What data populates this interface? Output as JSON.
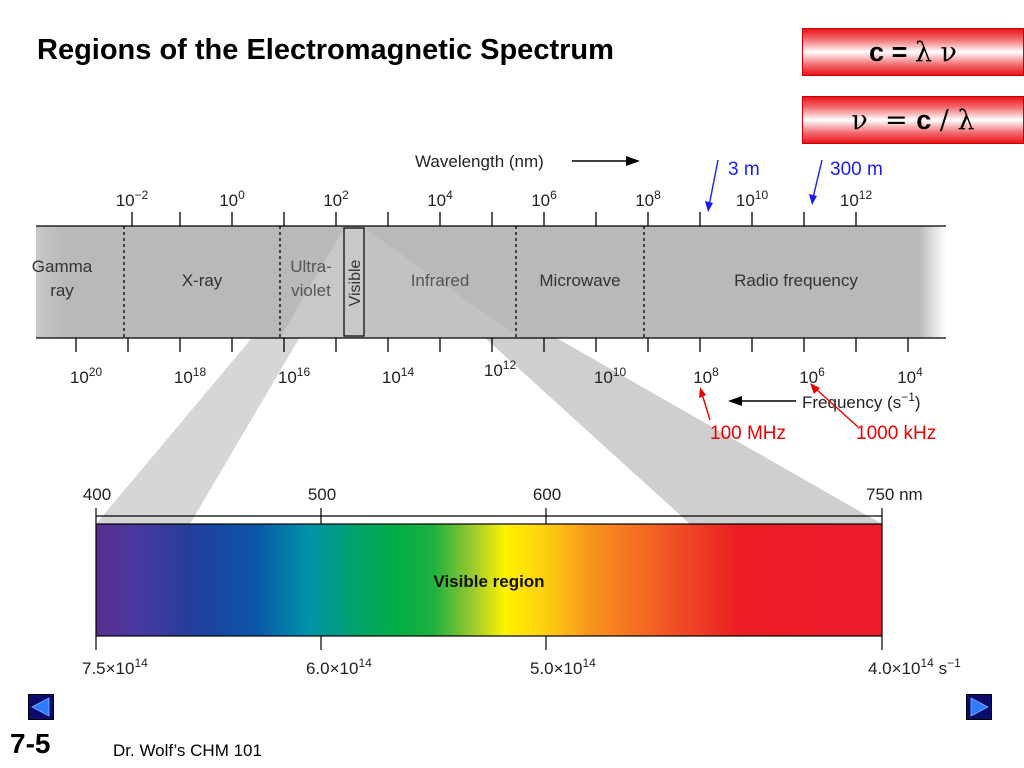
{
  "slide": {
    "title": "Regions of the Electromagnetic Spectrum",
    "number": "7-5",
    "footer": "Dr. Wolf’s CHM 101"
  },
  "equations": {
    "eq1": {
      "lhs": "c = ",
      "rhs": "λ ν"
    },
    "eq2": {
      "lhs": "ν  = ",
      "c": "c",
      "rhs": " / λ"
    }
  },
  "spectrum": {
    "wavelength_label": "Wavelength (nm)",
    "frequency_label": "Frequency (s",
    "frequency_label_sup": "−1",
    "frequency_label_end": ")",
    "wavelength_ticks": [
      {
        "base": "10",
        "exp": "−2"
      },
      {
        "base": "10",
        "exp": "0"
      },
      {
        "base": "10",
        "exp": "2"
      },
      {
        "base": "10",
        "exp": "4"
      },
      {
        "base": "10",
        "exp": "6"
      },
      {
        "base": "10",
        "exp": "8"
      },
      {
        "base": "10",
        "exp": "10"
      },
      {
        "base": "10",
        "exp": "12"
      }
    ],
    "frequency_ticks": [
      {
        "base": "10",
        "exp": "20"
      },
      {
        "base": "10",
        "exp": "18"
      },
      {
        "base": "10",
        "exp": "16"
      },
      {
        "base": "10",
        "exp": "14"
      },
      {
        "base": "10",
        "exp": "12"
      },
      {
        "base": "10",
        "exp": "10"
      },
      {
        "base": "10",
        "exp": "8"
      },
      {
        "base": "10",
        "exp": "6"
      },
      {
        "base": "10",
        "exp": "4"
      }
    ],
    "regions": {
      "gamma_1": "Gamma",
      "gamma_2": "ray",
      "xray": "X-ray",
      "uv_1": "Ultra-",
      "uv_2": "violet",
      "visible": "Visible",
      "infrared": "Infrared",
      "microwave": "Microwave",
      "radio": "Radio frequency"
    }
  },
  "annotations": {
    "wl_3m": "3 m",
    "wl_300m": "300 m",
    "f_100mhz": "100 MHz",
    "f_1000khz": "1000 kHz",
    "blue_color": "#1a1aff",
    "red_color": "#ee0000"
  },
  "visible_region": {
    "label": "Visible region",
    "wavelength_ticks": [
      "400",
      "500",
      "600",
      "750 nm"
    ],
    "frequency_ticks": [
      {
        "m": "7.5×10",
        "exp": "14",
        "unit": ""
      },
      {
        "m": "6.0×10",
        "exp": "14",
        "unit": ""
      },
      {
        "m": "5.0×10",
        "exp": "14",
        "unit": ""
      },
      {
        "m": "4.0×10",
        "exp": "14",
        "unit": " s",
        "unit_exp": "−1"
      }
    ]
  }
}
